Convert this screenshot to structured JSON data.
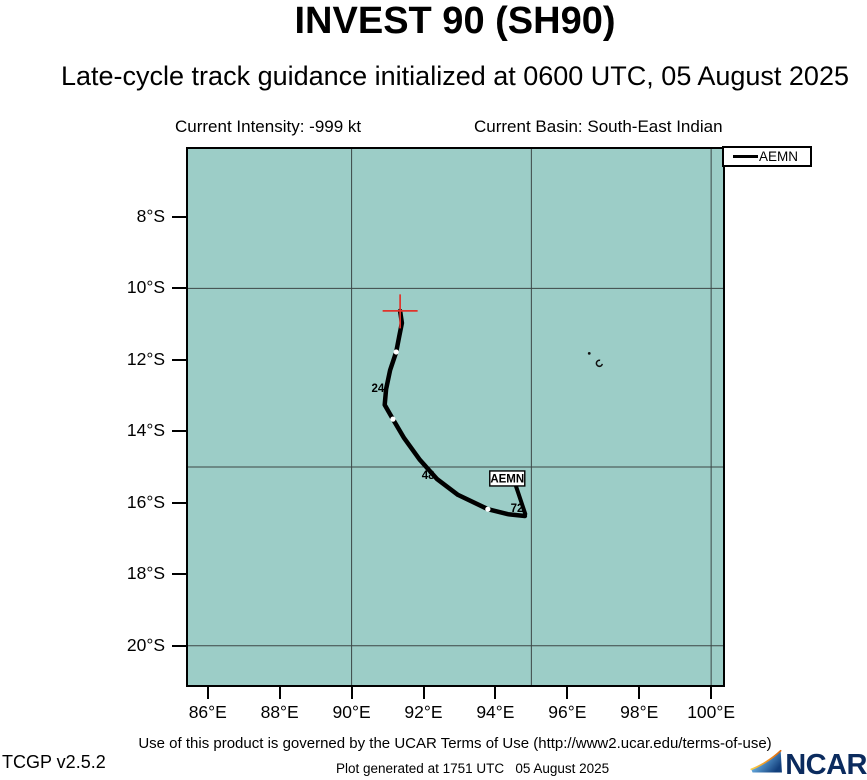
{
  "header": {
    "title": "INVEST 90 (SH90)",
    "subtitle": "Late-cycle track guidance initialized at 0600 UTC, 05 August 2025",
    "intensity": "Current Intensity: -999 kt",
    "basin": "Current Basin: South-East Indian"
  },
  "legend": {
    "entries": [
      {
        "label": "AEMN",
        "color": "#000000"
      }
    ]
  },
  "footer": {
    "terms": "Use of this product is governed by the UCAR Terms of Use (http://www2.ucar.edu/terms-of-use)",
    "version": "TCGP v2.5.2",
    "generated": "Plot generated at 1751 UTC   05 August 2025",
    "logo_text": "NCAR"
  },
  "chart_data": {
    "type": "line",
    "title": "INVEST 90 (SH90)",
    "subtitle": "Late-cycle track guidance initialized at 0600 UTC, 05 August 2025",
    "legend_position": "top-right",
    "xlim": [
      85.45,
      100.33
    ],
    "ylim": [
      6.1,
      21.1
    ],
    "x_ticks": [
      {
        "lon": 86,
        "label": "86°E"
      },
      {
        "lon": 88,
        "label": "88°E"
      },
      {
        "lon": 90,
        "label": "90°E"
      },
      {
        "lon": 92,
        "label": "92°E"
      },
      {
        "lon": 94,
        "label": "94°E"
      },
      {
        "lon": 96,
        "label": "96°E"
      },
      {
        "lon": 98,
        "label": "98°E"
      },
      {
        "lon": 100,
        "label": "100°E"
      }
    ],
    "y_ticks": [
      {
        "lat": 8,
        "label": "8°S"
      },
      {
        "lat": 10,
        "label": "10°S"
      },
      {
        "lat": 12,
        "label": "12°S"
      },
      {
        "lat": 14,
        "label": "14°S"
      },
      {
        "lat": 16,
        "label": "16°S"
      },
      {
        "lat": 18,
        "label": "18°S"
      },
      {
        "lat": 20,
        "label": "20°S"
      }
    ],
    "grid_lons": [
      90,
      95,
      100
    ],
    "grid_lats": [
      10,
      15,
      20
    ],
    "initial_position": {
      "lon": 91.35,
      "lat": 10.63,
      "marker": "red-cross"
    },
    "series": [
      {
        "name": "AEMN",
        "color": "#000000",
        "track": [
          {
            "hour": 0,
            "lon": 91.35,
            "lat": 10.63
          },
          {
            "hour": 12,
            "lon": 91.24,
            "lat": 11.78
          },
          {
            "hour": 24,
            "lon": 90.95,
            "lat": 12.85
          },
          {
            "hour": 36,
            "lon": 91.15,
            "lat": 13.66
          },
          {
            "hour": 48,
            "lon": 92.38,
            "lat": 15.34
          },
          {
            "hour": 60,
            "lon": 93.79,
            "lat": 16.18
          },
          {
            "hour": 72,
            "lon": 94.82,
            "lat": 16.37
          }
        ],
        "path": [
          [
            91.35,
            10.63
          ],
          [
            91.4,
            10.97
          ],
          [
            91.32,
            11.36
          ],
          [
            91.24,
            11.78
          ],
          [
            91.07,
            12.29
          ],
          [
            90.96,
            12.82
          ],
          [
            90.92,
            13.26
          ],
          [
            91.15,
            13.66
          ],
          [
            91.46,
            14.19
          ],
          [
            91.9,
            14.8
          ],
          [
            92.38,
            15.34
          ],
          [
            92.96,
            15.78
          ],
          [
            93.79,
            16.18
          ],
          [
            94.35,
            16.32
          ],
          [
            94.82,
            16.37
          ]
        ],
        "dots": [
          [
            91.24,
            11.78
          ],
          [
            91.15,
            13.66
          ],
          [
            93.79,
            16.18
          ]
        ],
        "hour_labels": [
          {
            "text": "24",
            "lon": 90.73,
            "lat": 12.79
          },
          {
            "text": "48",
            "lon": 92.13,
            "lat": 15.22
          },
          {
            "text": "72",
            "lon": 94.6,
            "lat": 16.15
          }
        ],
        "callout": {
          "label": "AEMN",
          "lon": 94.33,
          "lat": 15.32,
          "pointer": [
            [
              94.55,
              15.47
            ],
            [
              94.83,
              16.31
            ]
          ]
        }
      }
    ],
    "islands": [
      {
        "name": "north-keeling",
        "shape": "dot",
        "lon": 96.61,
        "lat": 11.82
      },
      {
        "name": "south-keeling",
        "shape": "atoll",
        "lon": 96.89,
        "lat": 12.1
      }
    ],
    "colors": {
      "sea": "#9CCDC7",
      "grid": "#3c4646",
      "track": "#000000",
      "init_marker": "#E0332B",
      "map_border": "#000000"
    }
  }
}
